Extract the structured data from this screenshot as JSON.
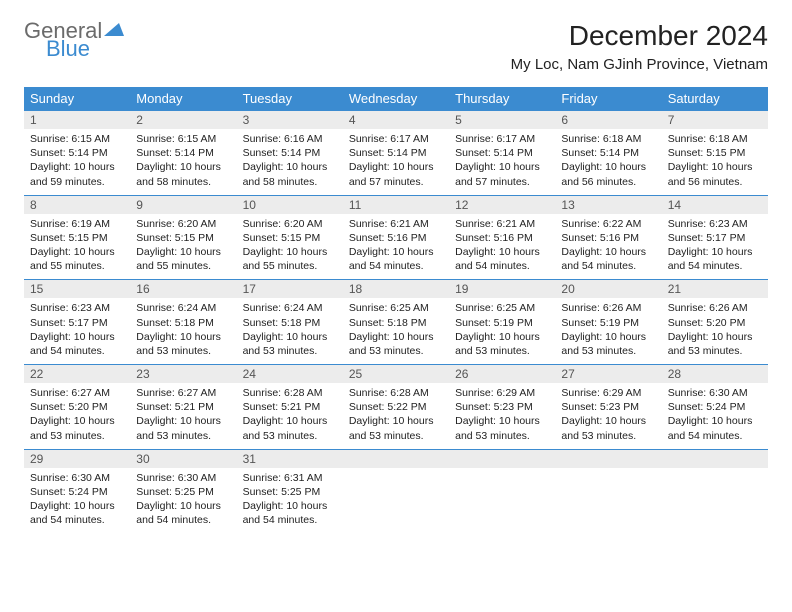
{
  "brand": {
    "word1": "General",
    "word2": "Blue",
    "word1_color": "#6b6b6b",
    "word2_color": "#3b8bd0",
    "triangle_color": "#3b8bd0"
  },
  "title": "December 2024",
  "location": "My Loc, Nam GJinh Province, Vietnam",
  "colors": {
    "header_bg": "#3b8bd0",
    "header_text": "#ffffff",
    "daynum_bg": "#ececec",
    "row_border": "#3b8bd0",
    "body_text": "#222222"
  },
  "day_headers": [
    "Sunday",
    "Monday",
    "Tuesday",
    "Wednesday",
    "Thursday",
    "Friday",
    "Saturday"
  ],
  "weeks": [
    [
      {
        "n": "1",
        "sunrise": "Sunrise: 6:15 AM",
        "sunset": "Sunset: 5:14 PM",
        "daylight": "Daylight: 10 hours and 59 minutes."
      },
      {
        "n": "2",
        "sunrise": "Sunrise: 6:15 AM",
        "sunset": "Sunset: 5:14 PM",
        "daylight": "Daylight: 10 hours and 58 minutes."
      },
      {
        "n": "3",
        "sunrise": "Sunrise: 6:16 AM",
        "sunset": "Sunset: 5:14 PM",
        "daylight": "Daylight: 10 hours and 58 minutes."
      },
      {
        "n": "4",
        "sunrise": "Sunrise: 6:17 AM",
        "sunset": "Sunset: 5:14 PM",
        "daylight": "Daylight: 10 hours and 57 minutes."
      },
      {
        "n": "5",
        "sunrise": "Sunrise: 6:17 AM",
        "sunset": "Sunset: 5:14 PM",
        "daylight": "Daylight: 10 hours and 57 minutes."
      },
      {
        "n": "6",
        "sunrise": "Sunrise: 6:18 AM",
        "sunset": "Sunset: 5:14 PM",
        "daylight": "Daylight: 10 hours and 56 minutes."
      },
      {
        "n": "7",
        "sunrise": "Sunrise: 6:18 AM",
        "sunset": "Sunset: 5:15 PM",
        "daylight": "Daylight: 10 hours and 56 minutes."
      }
    ],
    [
      {
        "n": "8",
        "sunrise": "Sunrise: 6:19 AM",
        "sunset": "Sunset: 5:15 PM",
        "daylight": "Daylight: 10 hours and 55 minutes."
      },
      {
        "n": "9",
        "sunrise": "Sunrise: 6:20 AM",
        "sunset": "Sunset: 5:15 PM",
        "daylight": "Daylight: 10 hours and 55 minutes."
      },
      {
        "n": "10",
        "sunrise": "Sunrise: 6:20 AM",
        "sunset": "Sunset: 5:15 PM",
        "daylight": "Daylight: 10 hours and 55 minutes."
      },
      {
        "n": "11",
        "sunrise": "Sunrise: 6:21 AM",
        "sunset": "Sunset: 5:16 PM",
        "daylight": "Daylight: 10 hours and 54 minutes."
      },
      {
        "n": "12",
        "sunrise": "Sunrise: 6:21 AM",
        "sunset": "Sunset: 5:16 PM",
        "daylight": "Daylight: 10 hours and 54 minutes."
      },
      {
        "n": "13",
        "sunrise": "Sunrise: 6:22 AM",
        "sunset": "Sunset: 5:16 PM",
        "daylight": "Daylight: 10 hours and 54 minutes."
      },
      {
        "n": "14",
        "sunrise": "Sunrise: 6:23 AM",
        "sunset": "Sunset: 5:17 PM",
        "daylight": "Daylight: 10 hours and 54 minutes."
      }
    ],
    [
      {
        "n": "15",
        "sunrise": "Sunrise: 6:23 AM",
        "sunset": "Sunset: 5:17 PM",
        "daylight": "Daylight: 10 hours and 54 minutes."
      },
      {
        "n": "16",
        "sunrise": "Sunrise: 6:24 AM",
        "sunset": "Sunset: 5:18 PM",
        "daylight": "Daylight: 10 hours and 53 minutes."
      },
      {
        "n": "17",
        "sunrise": "Sunrise: 6:24 AM",
        "sunset": "Sunset: 5:18 PM",
        "daylight": "Daylight: 10 hours and 53 minutes."
      },
      {
        "n": "18",
        "sunrise": "Sunrise: 6:25 AM",
        "sunset": "Sunset: 5:18 PM",
        "daylight": "Daylight: 10 hours and 53 minutes."
      },
      {
        "n": "19",
        "sunrise": "Sunrise: 6:25 AM",
        "sunset": "Sunset: 5:19 PM",
        "daylight": "Daylight: 10 hours and 53 minutes."
      },
      {
        "n": "20",
        "sunrise": "Sunrise: 6:26 AM",
        "sunset": "Sunset: 5:19 PM",
        "daylight": "Daylight: 10 hours and 53 minutes."
      },
      {
        "n": "21",
        "sunrise": "Sunrise: 6:26 AM",
        "sunset": "Sunset: 5:20 PM",
        "daylight": "Daylight: 10 hours and 53 minutes."
      }
    ],
    [
      {
        "n": "22",
        "sunrise": "Sunrise: 6:27 AM",
        "sunset": "Sunset: 5:20 PM",
        "daylight": "Daylight: 10 hours and 53 minutes."
      },
      {
        "n": "23",
        "sunrise": "Sunrise: 6:27 AM",
        "sunset": "Sunset: 5:21 PM",
        "daylight": "Daylight: 10 hours and 53 minutes."
      },
      {
        "n": "24",
        "sunrise": "Sunrise: 6:28 AM",
        "sunset": "Sunset: 5:21 PM",
        "daylight": "Daylight: 10 hours and 53 minutes."
      },
      {
        "n": "25",
        "sunrise": "Sunrise: 6:28 AM",
        "sunset": "Sunset: 5:22 PM",
        "daylight": "Daylight: 10 hours and 53 minutes."
      },
      {
        "n": "26",
        "sunrise": "Sunrise: 6:29 AM",
        "sunset": "Sunset: 5:23 PM",
        "daylight": "Daylight: 10 hours and 53 minutes."
      },
      {
        "n": "27",
        "sunrise": "Sunrise: 6:29 AM",
        "sunset": "Sunset: 5:23 PM",
        "daylight": "Daylight: 10 hours and 53 minutes."
      },
      {
        "n": "28",
        "sunrise": "Sunrise: 6:30 AM",
        "sunset": "Sunset: 5:24 PM",
        "daylight": "Daylight: 10 hours and 54 minutes."
      }
    ],
    [
      {
        "n": "29",
        "sunrise": "Sunrise: 6:30 AM",
        "sunset": "Sunset: 5:24 PM",
        "daylight": "Daylight: 10 hours and 54 minutes."
      },
      {
        "n": "30",
        "sunrise": "Sunrise: 6:30 AM",
        "sunset": "Sunset: 5:25 PM",
        "daylight": "Daylight: 10 hours and 54 minutes."
      },
      {
        "n": "31",
        "sunrise": "Sunrise: 6:31 AM",
        "sunset": "Sunset: 5:25 PM",
        "daylight": "Daylight: 10 hours and 54 minutes."
      },
      null,
      null,
      null,
      null
    ]
  ]
}
